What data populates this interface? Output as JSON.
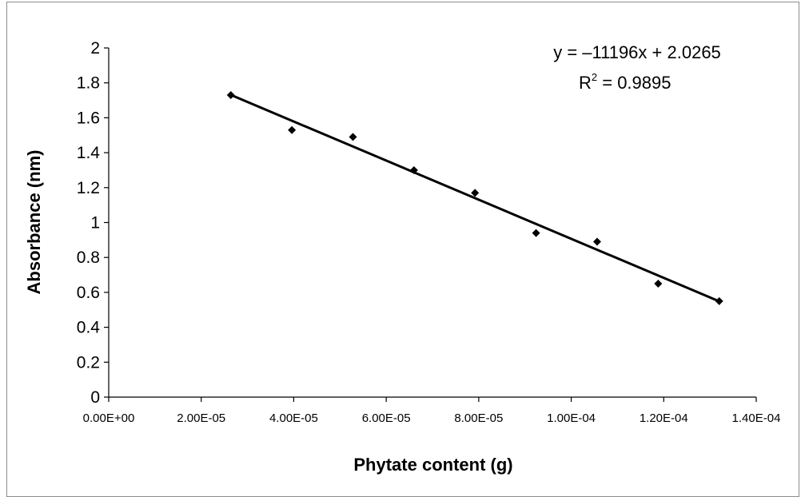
{
  "chart_data": {
    "type": "scatter",
    "xlabel": "Phytate content (g)",
    "ylabel": "Absorbance (nm)",
    "xlim": [
      0,
      0.00014
    ],
    "ylim": [
      0,
      2
    ],
    "x_ticks": [
      0,
      2e-05,
      4e-05,
      6e-05,
      8e-05,
      0.0001,
      0.00012,
      0.00014
    ],
    "x_tick_labels": [
      "0.00E+00",
      "2.00E-05",
      "4.00E-05",
      "6.00E-05",
      "8.00E-05",
      "1.00E-04",
      "1.20E-04",
      "1.40E-04"
    ],
    "y_ticks": [
      0,
      0.2,
      0.4,
      0.6,
      0.8,
      1,
      1.2,
      1.4,
      1.6,
      1.8,
      2
    ],
    "y_tick_labels": [
      "0",
      "0.2",
      "0.4",
      "0.6",
      "0.8",
      "1",
      "1.2",
      "1.4",
      "1.6",
      "1.8",
      "2"
    ],
    "grid": false,
    "series": [
      {
        "x": [
          2.64e-05,
          3.96e-05,
          5.28e-05,
          6.6e-05,
          7.92e-05,
          9.24e-05,
          0.0001056,
          0.0001188,
          0.000132
        ],
        "y": [
          1.73,
          1.53,
          1.49,
          1.3,
          1.17,
          0.94,
          0.89,
          0.65,
          0.55
        ],
        "color": "#000000",
        "marker": "diamond"
      }
    ],
    "trendline": {
      "slope": -11196,
      "intercept": 2.0265,
      "x_range": [
        2.64e-05,
        0.000132
      ],
      "color": "#000000"
    },
    "annotations": {
      "equation": "y = –11196x + 2.0265",
      "r2_base": "R",
      "r2_sup": "2",
      "r2_value": " = 0.9895"
    }
  }
}
